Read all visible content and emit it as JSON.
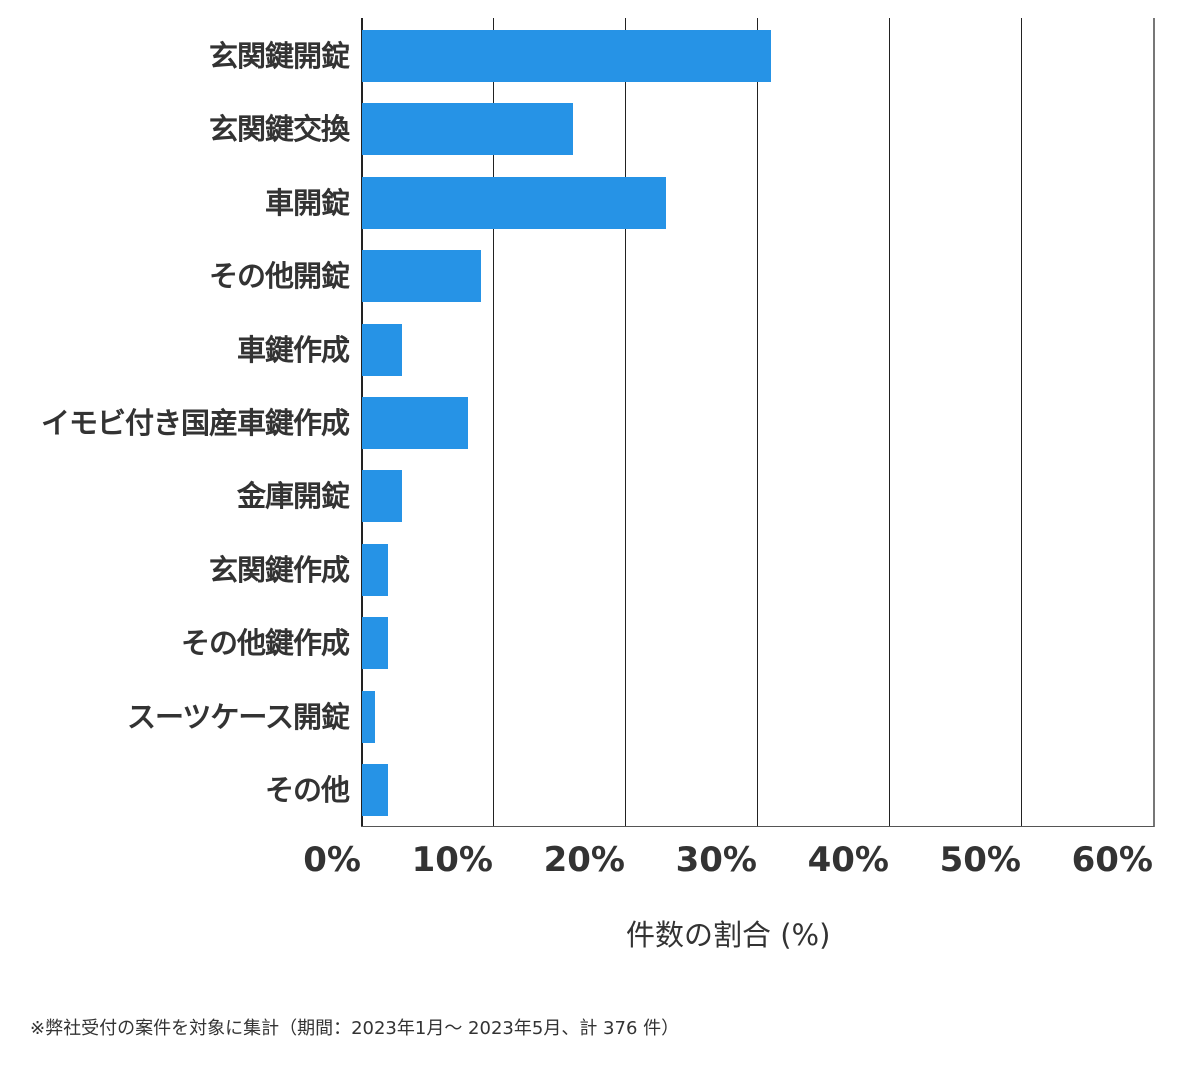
{
  "chart_data": {
    "type": "bar",
    "orientation": "horizontal",
    "categories": [
      "玄関鍵開錠",
      "玄関鍵交換",
      "車開錠",
      "その他開錠",
      "車鍵作成",
      "イモビ付き国産車鍵作成",
      "金庫開錠",
      "玄関鍵作成",
      "その他鍵作成",
      "スーツケース開錠",
      "その他"
    ],
    "values": [
      31,
      16,
      23,
      9,
      3,
      8,
      3,
      2,
      2,
      1,
      2
    ],
    "title": "",
    "xlabel": "件数の割合 (%)",
    "ylabel": "",
    "xlim": [
      0,
      60
    ],
    "x_ticks": [
      "0%",
      "10%",
      "20%",
      "30%",
      "40%",
      "50%",
      "60%"
    ],
    "grid": "vertical",
    "legend": "none",
    "bar_color": "#2693e6",
    "footnote": "※弊社受付の案件を対象に集計（期間：2023年1月～ 2023年5月、計 376 件）"
  }
}
